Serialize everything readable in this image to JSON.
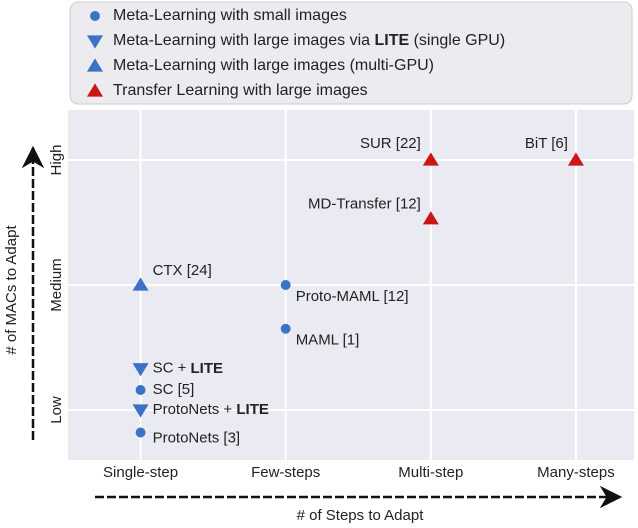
{
  "chart_data": {
    "type": "scatter",
    "x_label": "# of Steps to Adapt",
    "y_label": "# of MACs to Adapt",
    "emphasis": "LITE",
    "xlim": [
      -0.5,
      3.4
    ],
    "ylim": [
      -0.4,
      2.4
    ],
    "xticks": [
      {
        "value": 0,
        "label": "Single-step"
      },
      {
        "value": 1,
        "label": "Few-steps"
      },
      {
        "value": 2,
        "label": "Multi-step"
      },
      {
        "value": 3,
        "label": "Many-steps"
      }
    ],
    "yticks": [
      {
        "value": 0,
        "label": "Low"
      },
      {
        "value": 1,
        "label": "Medium"
      },
      {
        "value": 2,
        "label": "High"
      }
    ],
    "grid": true,
    "legend": "top",
    "series": [
      {
        "name": "Meta-Learning with small images",
        "color": "#3b73c4",
        "marker": "circle",
        "labels": [
          "Proto-MAML [12]",
          "MAML [1]",
          "SC [5]",
          "ProtoNets [3]"
        ],
        "x": [
          1,
          1,
          0,
          0
        ],
        "y": [
          1,
          0.65,
          0.16,
          -0.18
        ]
      },
      {
        "name": "Meta-Learning with large images via LITE (single GPU)",
        "color": "#3b73c4",
        "marker": "triangle-down",
        "labels": [
          "SC + LITE",
          "ProtoNets + LITE"
        ],
        "x": [
          0,
          0
        ],
        "y": [
          0.33,
          0
        ]
      },
      {
        "name": "Meta-Learning with large images (multi-GPU)",
        "color": "#3b73c4",
        "marker": "triangle-up",
        "labels": [
          "CTX [24]"
        ],
        "x": [
          0
        ],
        "y": [
          1
        ]
      },
      {
        "name": "Transfer Learning with large images",
        "color": "#cc1616",
        "marker": "triangle-up",
        "labels": [
          "SUR [22]",
          "BiT [6]",
          "MD-Transfer [12]"
        ],
        "x": [
          2,
          3,
          2
        ],
        "y": [
          2,
          2,
          1.53
        ]
      }
    ]
  }
}
